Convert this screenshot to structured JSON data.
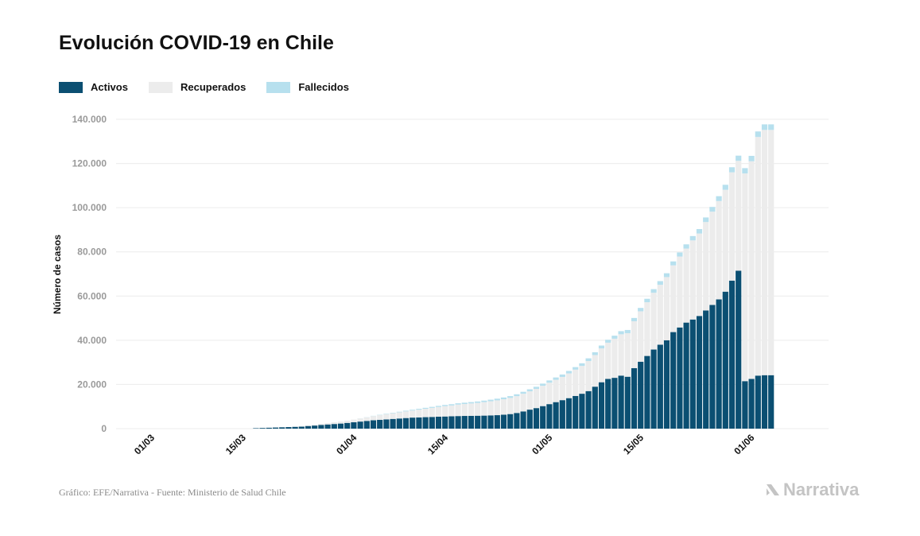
{
  "title": "Evolución COVID-19 en Chile",
  "source": "Gráfico: EFE/Narrativa - Fuente: Ministerio de Salud Chile",
  "brand": "Narrativa",
  "colors": {
    "activos": "#0b4f72",
    "recuperados": "#ececec",
    "fallecidos": "#b7e0ee",
    "grid": "#ececec"
  },
  "chart_data": {
    "type": "bar",
    "stacked": true,
    "title": "Evolución COVID-19 en Chile",
    "ylabel": "Número de casos",
    "xlabel": "",
    "ylim": [
      0,
      140000
    ],
    "y_ticks": [
      0,
      20000,
      40000,
      60000,
      80000,
      100000,
      120000,
      140000
    ],
    "y_tick_labels": [
      "0",
      "20.000",
      "40.000",
      "60.000",
      "80.000",
      "100.000",
      "120.000",
      "140.000"
    ],
    "x_tick_labels": [
      "01/03",
      "15/03",
      "01/04",
      "15/04",
      "01/05",
      "15/05",
      "01/06"
    ],
    "x_tick_day_index": [
      0,
      14,
      31,
      45,
      61,
      75,
      92
    ],
    "legend_position": "top-left",
    "grid": true,
    "first_bar_day_index": 17,
    "series": [
      {
        "name": "Activos",
        "values": [
          200,
          300,
          400,
          500,
          600,
          700,
          800,
          900,
          1200,
          1400,
          1700,
          1900,
          2100,
          2300,
          2600,
          2900,
          3200,
          3500,
          3800,
          4000,
          4200,
          4400,
          4600,
          4800,
          5000,
          5100,
          5200,
          5300,
          5400,
          5500,
          5600,
          5700,
          5750,
          5800,
          5850,
          5900,
          6000,
          6100,
          6300,
          6600,
          7100,
          7800,
          8600,
          9300,
          10200,
          11100,
          12000,
          12900,
          13800,
          14800,
          15800,
          17000,
          19000,
          21000,
          22500,
          23000,
          24000,
          23500,
          27400,
          30300,
          32900,
          35800,
          38000,
          40000,
          43700,
          45800,
          48000,
          49400,
          51000,
          53500,
          56000,
          58500,
          62000,
          67000,
          71500,
          21500,
          22500,
          24000,
          24200,
          24200
        ]
      },
      {
        "name": "Recuperados",
        "values": [
          0,
          0,
          0,
          0,
          0,
          0,
          0,
          100,
          200,
          300,
          500,
          600,
          800,
          900,
          1000,
          1200,
          1400,
          1600,
          1900,
          2100,
          2400,
          2600,
          2800,
          3000,
          3200,
          3500,
          3800,
          4100,
          4400,
          4700,
          4900,
          5200,
          5400,
          5600,
          5800,
          6100,
          6400,
          6700,
          7000,
          7300,
          7600,
          8000,
          8300,
          8700,
          9200,
          9700,
          10100,
          10500,
          11200,
          11900,
          12600,
          13600,
          14300,
          15300,
          16400,
          17700,
          18700,
          19700,
          21200,
          22800,
          24300,
          25700,
          27100,
          28600,
          30200,
          32100,
          33500,
          35800,
          37300,
          40000,
          42200,
          44500,
          46100,
          49000,
          49700,
          94000,
          98500,
          108000,
          111000,
          111000
        ]
      },
      {
        "name": "Fallecidos",
        "values": [
          0,
          0,
          0,
          0,
          0,
          0,
          0,
          0,
          0,
          0,
          0,
          0,
          0,
          0,
          0,
          0,
          50,
          80,
          100,
          150,
          180,
          200,
          250,
          300,
          340,
          380,
          420,
          450,
          490,
          520,
          560,
          580,
          600,
          620,
          650,
          680,
          710,
          760,
          800,
          820,
          850,
          880,
          900,
          940,
          980,
          1020,
          1060,
          1100,
          1120,
          1150,
          1180,
          1220,
          1260,
          1300,
          1330,
          1370,
          1410,
          1450,
          1490,
          1530,
          1570,
          1620,
          1670,
          1720,
          1780,
          1840,
          1900,
          1960,
          2020,
          2080,
          2140,
          2200,
          2260,
          2300,
          2350,
          2400,
          2450,
          2500,
          2500,
          2500
        ]
      }
    ]
  }
}
